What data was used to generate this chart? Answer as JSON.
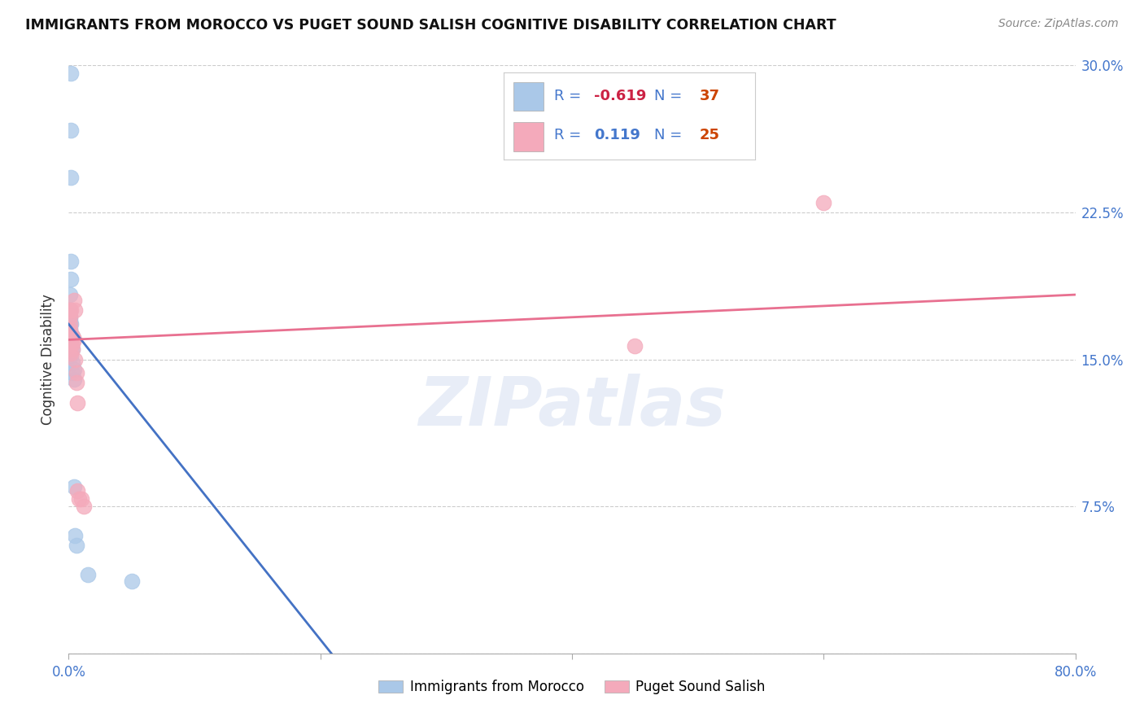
{
  "title": "IMMIGRANTS FROM MOROCCO VS PUGET SOUND SALISH COGNITIVE DISABILITY CORRELATION CHART",
  "source": "Source: ZipAtlas.com",
  "ylabel": "Cognitive Disability",
  "xlim": [
    0.0,
    0.8
  ],
  "ylim": [
    0.0,
    0.3
  ],
  "xtick_positions": [
    0.0,
    0.2,
    0.4,
    0.6,
    0.8
  ],
  "xtick_labels": [
    "0.0%",
    "",
    "",
    "",
    "80.0%"
  ],
  "ytick_positions": [
    0.0,
    0.075,
    0.15,
    0.225,
    0.3
  ],
  "ytick_labels_right": [
    "",
    "7.5%",
    "15.0%",
    "22.5%",
    "30.0%"
  ],
  "blue_points": [
    [
      0.002,
      0.296
    ],
    [
      0.002,
      0.267
    ],
    [
      0.002,
      0.243
    ],
    [
      0.002,
      0.2
    ],
    [
      0.002,
      0.191
    ],
    [
      0.001,
      0.183
    ],
    [
      0.001,
      0.175
    ],
    [
      0.001,
      0.172
    ],
    [
      0.001,
      0.17
    ],
    [
      0.001,
      0.168
    ],
    [
      0.001,
      0.165
    ],
    [
      0.001,
      0.163
    ],
    [
      0.001,
      0.161
    ],
    [
      0.001,
      0.159
    ],
    [
      0.0005,
      0.172
    ],
    [
      0.0005,
      0.168
    ],
    [
      0.0005,
      0.165
    ],
    [
      0.0005,
      0.162
    ],
    [
      0.001,
      0.157
    ],
    [
      0.001,
      0.155
    ],
    [
      0.001,
      0.153
    ],
    [
      0.002,
      0.168
    ],
    [
      0.002,
      0.162
    ],
    [
      0.002,
      0.158
    ],
    [
      0.002,
      0.155
    ],
    [
      0.002,
      0.152
    ],
    [
      0.003,
      0.162
    ],
    [
      0.003,
      0.155
    ],
    [
      0.003,
      0.148
    ],
    [
      0.003,
      0.143
    ],
    [
      0.004,
      0.145
    ],
    [
      0.004,
      0.14
    ],
    [
      0.004,
      0.085
    ],
    [
      0.005,
      0.06
    ],
    [
      0.006,
      0.055
    ],
    [
      0.015,
      0.04
    ],
    [
      0.05,
      0.037
    ]
  ],
  "pink_points": [
    [
      0.001,
      0.175
    ],
    [
      0.001,
      0.172
    ],
    [
      0.001,
      0.168
    ],
    [
      0.001,
      0.165
    ],
    [
      0.001,
      0.162
    ],
    [
      0.0015,
      0.175
    ],
    [
      0.002,
      0.16
    ],
    [
      0.002,
      0.157
    ],
    [
      0.002,
      0.153
    ],
    [
      0.003,
      0.162
    ],
    [
      0.003,
      0.158
    ],
    [
      0.003,
      0.155
    ],
    [
      0.004,
      0.18
    ],
    [
      0.004,
      0.16
    ],
    [
      0.005,
      0.175
    ],
    [
      0.005,
      0.15
    ],
    [
      0.006,
      0.143
    ],
    [
      0.006,
      0.138
    ],
    [
      0.007,
      0.128
    ],
    [
      0.007,
      0.083
    ],
    [
      0.008,
      0.079
    ],
    [
      0.01,
      0.079
    ],
    [
      0.012,
      0.075
    ],
    [
      0.6,
      0.23
    ],
    [
      0.45,
      0.157
    ]
  ],
  "blue_line_x": [
    0.0,
    0.215
  ],
  "blue_line_y": [
    0.168,
    -0.005
  ],
  "pink_line_x": [
    0.0,
    0.8
  ],
  "pink_line_y": [
    0.16,
    0.183
  ],
  "legend_blue_R": "-0.619",
  "legend_blue_N": "37",
  "legend_pink_R": "0.119",
  "legend_pink_N": "25",
  "blue_color": "#aac8e8",
  "pink_color": "#f4aabb",
  "blue_line_color": "#4472c4",
  "pink_line_color": "#e87090",
  "watermark_text": "ZIPatlas",
  "legend_label_blue": "Immigrants from Morocco",
  "legend_label_pink": "Puget Sound Salish"
}
